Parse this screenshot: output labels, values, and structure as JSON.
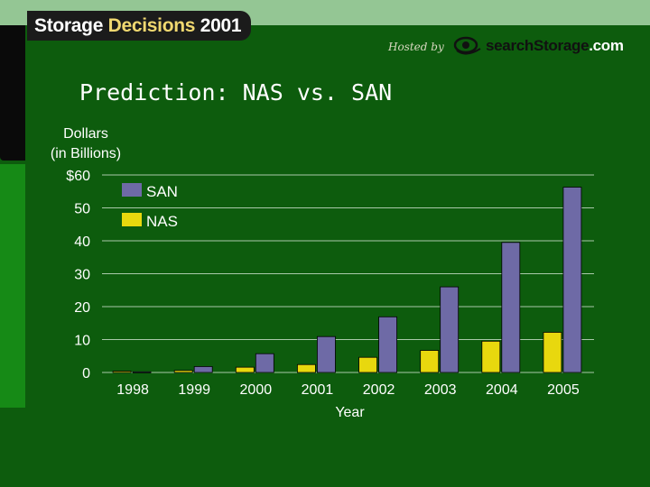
{
  "header": {
    "logo_part1": "Storage",
    "logo_part2": "Decisions",
    "logo_part3": "2001",
    "hosted_by": "Hosted by",
    "site_part1": "search",
    "site_part2": "Storage",
    "site_part3": ".com"
  },
  "title": "Prediction: NAS vs. SAN",
  "colors": {
    "background": "#0d5c0d",
    "san": "#6e6aa6",
    "nas": "#e8d80e"
  },
  "chart_data": {
    "type": "bar",
    "title": "Prediction: NAS vs. SAN",
    "ylabel_lines": [
      "Dollars",
      "(in Billions)"
    ],
    "xlabel": "Year",
    "categories": [
      "1998",
      "1999",
      "2000",
      "2001",
      "2002",
      "2003",
      "2004",
      "2005"
    ],
    "ylim": [
      0,
      60
    ],
    "yticks": [
      "$60",
      "50",
      "40",
      "30",
      "20",
      "10",
      "0"
    ],
    "ytick_values": [
      60,
      50,
      40,
      30,
      20,
      10,
      0
    ],
    "grid": true,
    "legend_position": "top-left",
    "series": [
      {
        "name": "NAS",
        "color": "#e8d80e",
        "values": [
          0.4,
          0.6,
          1.6,
          2.4,
          4.6,
          6.7,
          9.5,
          12.2
        ]
      },
      {
        "name": "SAN",
        "color": "#6e6aa6",
        "values": [
          0.2,
          1.8,
          5.7,
          10.9,
          16.9,
          26.0,
          39.5,
          56.3
        ]
      }
    ]
  }
}
